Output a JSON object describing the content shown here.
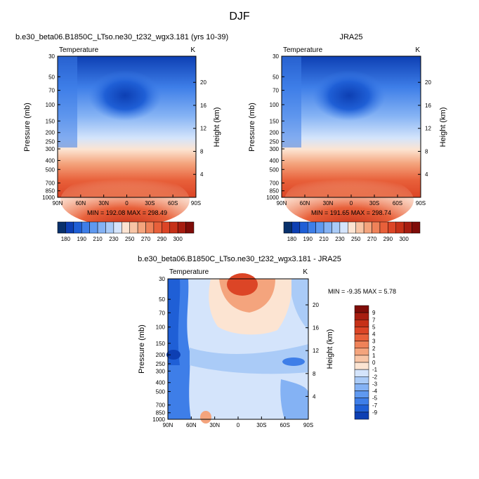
{
  "figure_title": "DJF",
  "colors": {
    "cool": [
      "#08306b",
      "#0d3fb3",
      "#1f5fd6",
      "#3e7ee8",
      "#5f99f0",
      "#84b2f4",
      "#aacbf7",
      "#d4e4fb"
    ],
    "warm": [
      "#fce4d2",
      "#f8c5a6",
      "#f4a47d",
      "#ef8259",
      "#e8603a",
      "#dc4526",
      "#c63118",
      "#a71d10",
      "#7f0c08"
    ]
  },
  "chart_data": [
    {
      "type": "heatmap",
      "title": "b.e30_beta06.B1850C_LTso.ne30_t232_wgx3.181 (yrs 10-39)",
      "variable": "Temperature",
      "units": "K",
      "ylabel": "Pressure (mb)",
      "y2label": "Height (km)",
      "x_ticks": [
        "90N",
        "60N",
        "30N",
        "0",
        "30S",
        "60S",
        "90S"
      ],
      "y_ticks": [
        "30",
        "50",
        "70",
        "100",
        "150",
        "200",
        "250",
        "300",
        "400",
        "500",
        "700",
        "850",
        "1000"
      ],
      "y2_ticks": [
        "20",
        "16",
        "12",
        "8",
        "4"
      ],
      "min": 192.08,
      "max": 298.49,
      "stats_text": "MIN = 192.08   MAX = 298.49"
    },
    {
      "type": "heatmap",
      "title": "JRA25",
      "variable": "Temperature",
      "units": "K",
      "ylabel": "Pressure (mb)",
      "y2label": "Height (km)",
      "x_ticks": [
        "90N",
        "60N",
        "30N",
        "0",
        "30S",
        "60S",
        "90S"
      ],
      "y_ticks": [
        "30",
        "50",
        "70",
        "100",
        "150",
        "200",
        "250",
        "300",
        "400",
        "500",
        "700",
        "850",
        "1000"
      ],
      "y2_ticks": [
        "20",
        "16",
        "12",
        "8",
        "4"
      ],
      "min": 191.65,
      "max": 298.74,
      "stats_text": "MIN = 191.65   MAX = 298.74"
    },
    {
      "type": "heatmap",
      "title": "b.e30_beta06.B1850C_LTso.ne30_t232_wgx3.181 - JRA25",
      "variable": "Temperature",
      "units": "K",
      "ylabel": "Pressure (mb)",
      "y2label": "Height (km)",
      "x_ticks": [
        "90N",
        "60N",
        "30N",
        "0",
        "30S",
        "60S",
        "90S"
      ],
      "y_ticks": [
        "30",
        "50",
        "70",
        "100",
        "150",
        "200",
        "250",
        "300",
        "400",
        "500",
        "700",
        "850",
        "1000"
      ],
      "y2_ticks": [
        "20",
        "16",
        "12",
        "8",
        "4"
      ],
      "min": -9.35,
      "max": 5.78,
      "stats_text": "MIN = -9.35   MAX =  5.78"
    }
  ],
  "colorbar_abs": {
    "labels": [
      "180",
      "190",
      "210",
      "230",
      "250",
      "270",
      "290",
      "300"
    ]
  },
  "colorbar_diff": {
    "labels": [
      "9",
      "7",
      "5",
      "4",
      "3",
      "2",
      "1",
      "0",
      "-1",
      "-2",
      "-3",
      "-4",
      "-5",
      "-7",
      "-9"
    ]
  }
}
